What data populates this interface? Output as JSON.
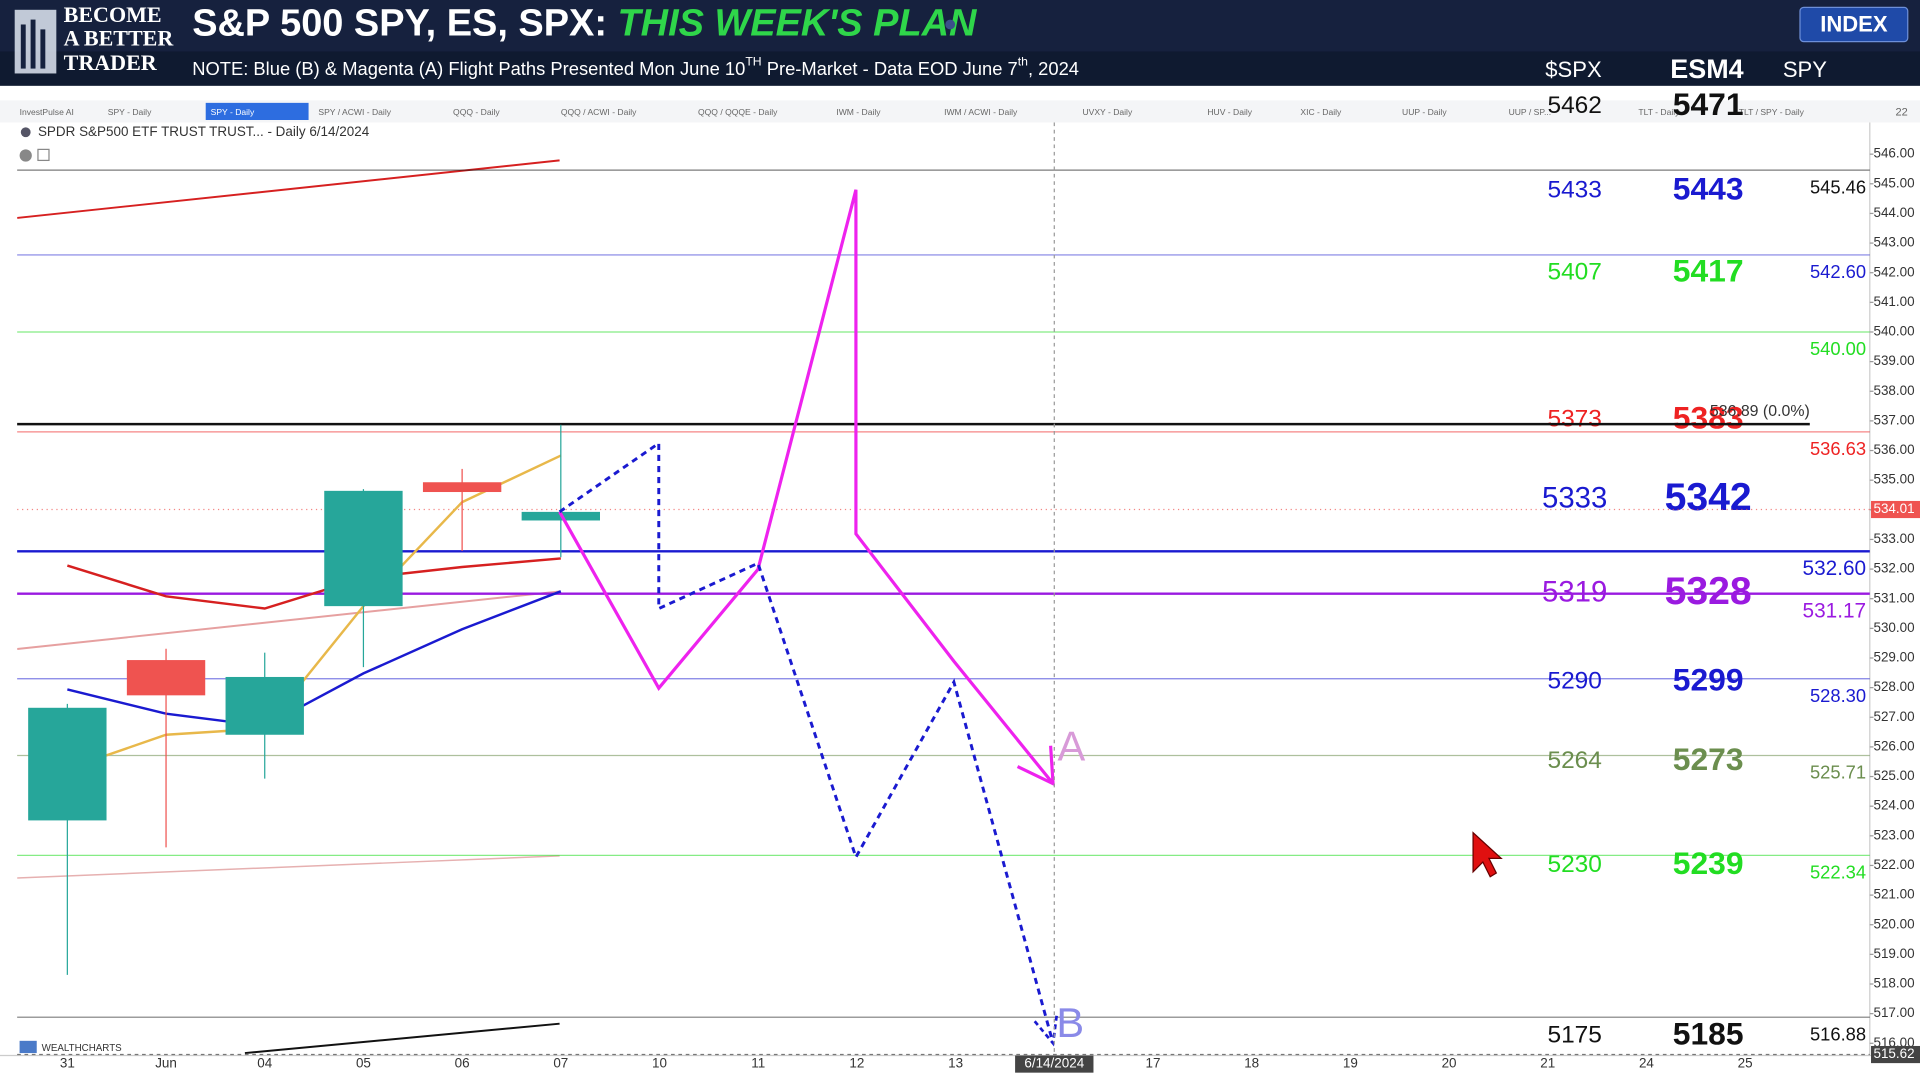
{
  "header": {
    "logo": [
      "BECOME",
      "A BETTER",
      "TRADER"
    ],
    "title": "S&P 500 SPY, ES, SPX: ",
    "title_highlight": "THIS WEEK'S PLAN",
    "note": [
      "NOTE: Blue (B) & Magenta (A) Flight Paths Presented Mon June 10",
      "TH",
      "  Pre-Market  - Data EOD June 7",
      "th",
      ", 2024"
    ],
    "button": "INDEX",
    "columns": [
      "$SPX",
      "ESM4",
      "SPY"
    ]
  },
  "tabs": {
    "items": [
      "InvestPulse AI",
      "SPY - Daily",
      "SPY - Daily",
      "SPY / ACWI - Daily",
      "QQQ - Daily",
      "QQQ / ACWI - Daily",
      "QQQ / QQQE - Daily",
      "IWM - Daily",
      "IWM / ACWI - Daily",
      "UVXY - Daily",
      "HUV - Daily",
      "XIC - Daily",
      "UUP - Daily",
      "UUP / SP...",
      "TLT - Daily",
      "TLT / SPY - Daily"
    ],
    "active": 2,
    "more": "22"
  },
  "chart_data": {
    "type": "candlestick",
    "caption": "SPDR S&P500 ETF TRUST TRUST... - Daily 6/14/2024",
    "brand": "WEALTHCHARTS",
    "categories": [
      "31",
      "Jun",
      "04",
      "05",
      "06",
      "07",
      "10",
      "11",
      "12",
      "13",
      "6/14/2024",
      "17",
      "18",
      "19",
      "20",
      "21",
      "24",
      "25"
    ],
    "highlight_category": 10,
    "candles": {
      "open": [
        523.52,
        528.93,
        526.41,
        530.75,
        534.93,
        533.64,
        null,
        null,
        null,
        null,
        null,
        null,
        null,
        null,
        null,
        null,
        null,
        null
      ],
      "high": [
        527.45,
        529.31,
        529.18,
        534.7,
        535.38,
        536.87,
        null,
        null,
        null,
        null,
        null,
        null,
        null,
        null,
        null,
        null,
        null,
        null
      ],
      "low": [
        518.31,
        522.61,
        524.93,
        528.69,
        532.61,
        532.4,
        null,
        null,
        null,
        null,
        null,
        null,
        null,
        null,
        null,
        null,
        null,
        null
      ],
      "close": [
        527.32,
        527.74,
        528.36,
        534.64,
        534.6,
        533.93,
        null,
        null,
        null,
        null,
        null,
        null,
        null,
        null,
        null,
        null,
        null,
        null
      ],
      "up_color": "#26a69a",
      "down_color": "#ef5350"
    },
    "lines": [
      {
        "color": "#e8b84a",
        "values": [
          525.26,
          526.41,
          526.62,
          530.75,
          534.26,
          535.83,
          null,
          null,
          null,
          null,
          null,
          null,
          null,
          null,
          null,
          null,
          null,
          null
        ]
      },
      {
        "color": "#d62020",
        "values": [
          532.12,
          531.08,
          530.67,
          531.7,
          532.07,
          532.36,
          null,
          null,
          null,
          null,
          null,
          null,
          null,
          null,
          null,
          null,
          null,
          null
        ]
      },
      {
        "color": "#1a1ad0",
        "values": [
          527.94,
          527.12,
          526.7,
          528.48,
          529.97,
          531.25,
          null,
          null,
          null,
          null,
          null,
          null,
          null,
          null,
          null,
          null,
          null,
          null
        ]
      }
    ],
    "ylim": [
      515.67,
      547.07
    ],
    "yticks": [
      {
        "value": 516,
        "label": "516.00"
      },
      {
        "value": 517,
        "label": "517.00"
      },
      {
        "value": 518,
        "label": "518.00"
      },
      {
        "value": 519,
        "label": "519.00"
      },
      {
        "value": 520,
        "label": "520.00"
      },
      {
        "value": 521,
        "label": "521.00"
      },
      {
        "value": 522,
        "label": "522.00"
      },
      {
        "value": 523,
        "label": "523.00"
      },
      {
        "value": 524,
        "label": "524.00"
      },
      {
        "value": 525,
        "label": "525.00"
      },
      {
        "value": 526,
        "label": "526.00"
      },
      {
        "value": 527,
        "label": "527.00"
      },
      {
        "value": 528,
        "label": "528.00"
      },
      {
        "value": 529,
        "label": "529.00"
      },
      {
        "value": 530,
        "label": "530.00"
      },
      {
        "value": 531,
        "label": "531.00"
      },
      {
        "value": 532,
        "label": "532.00"
      },
      {
        "value": 533,
        "label": "533.00"
      },
      {
        "value": 534,
        "label": "534.00"
      },
      {
        "value": 535,
        "label": "535.00"
      },
      {
        "value": 536,
        "label": "536.00"
      },
      {
        "value": 537,
        "label": "537.00"
      },
      {
        "value": 538,
        "label": "538.00"
      },
      {
        "value": 539,
        "label": "539.00"
      },
      {
        "value": 540,
        "label": "540.00"
      },
      {
        "value": 541,
        "label": "541.00"
      },
      {
        "value": 542,
        "label": "542.00"
      },
      {
        "value": 543,
        "label": "543.00"
      },
      {
        "value": 544,
        "label": "544.00"
      },
      {
        "value": 545,
        "label": "545.00"
      },
      {
        "value": 546,
        "label": "546.00"
      }
    ],
    "reference": {
      "value": 536.89,
      "label": "536.89 (0.0%)"
    },
    "last_price": {
      "value": 534.01,
      "label": "534.01"
    },
    "crosshair": {
      "value": 515.62,
      "label": "515.62"
    },
    "levels": [
      {
        "spx": "5462",
        "esm4": "5471",
        "spy": {
          "value": 545.46,
          "label": "545.46"
        },
        "color": "#111111"
      },
      {
        "spx": "5433",
        "esm4": "5443",
        "spy": {
          "value": 542.6,
          "label": "542.60"
        },
        "color": "#1a1ad0"
      },
      {
        "spx": "5407",
        "esm4": "5417",
        "spy": {
          "value": 540,
          "label": "540.00"
        },
        "color": "#22dd22"
      },
      {
        "spx": "5373",
        "esm4": "5383",
        "spy": {
          "value": 536.63,
          "label": "536.63"
        },
        "color": "#ee2222"
      },
      {
        "spx": "5333",
        "esm4": "5342",
        "spy": {
          "value": 532.6,
          "label": "532.60"
        },
        "color": "#1a1ad0",
        "bold": true
      },
      {
        "spx": "5319",
        "esm4": "5328",
        "spy": {
          "value": 531.17,
          "label": "531.17"
        },
        "color": "#9a1ae0",
        "bold": true
      },
      {
        "spx": "5290",
        "esm4": "5299",
        "spy": {
          "value": 528.3,
          "label": "528.30"
        },
        "color": "#1a1ad0"
      },
      {
        "spx": "5264",
        "esm4": "5273",
        "spy": {
          "value": 525.71,
          "label": "525.71"
        },
        "color": "#6b8e4e"
      },
      {
        "spx": "5230",
        "esm4": "5239",
        "spy": {
          "value": 522.34,
          "label": "522.34"
        },
        "color": "#22dd22"
      },
      {
        "spx": "5175",
        "esm4": "5185",
        "spy": {
          "value": 516.88,
          "label": "516.88"
        },
        "color": "#111111"
      }
    ],
    "flight_paths": {
      "a_label": "A",
      "b_label": "B"
    }
  }
}
